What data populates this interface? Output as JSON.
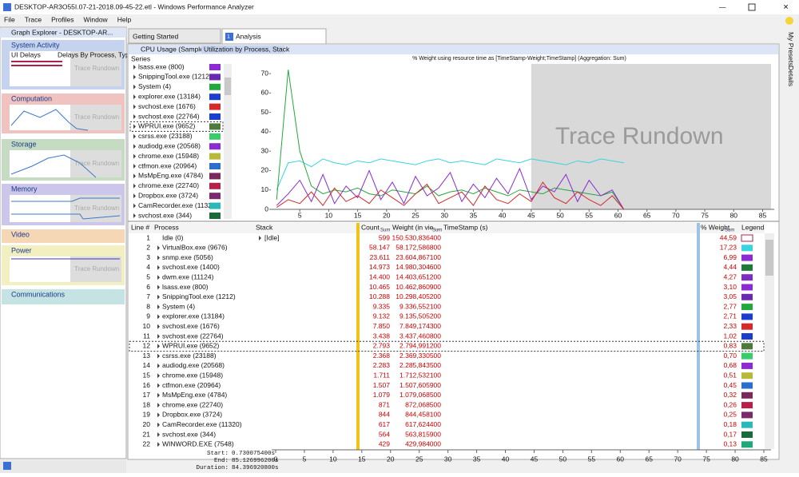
{
  "window": {
    "title": "DESKTOP-AR3O55I.07-21-2018.09-45-22.etl - Windows Performance Analyzer"
  },
  "menu": [
    "File",
    "Trace",
    "Profiles",
    "Window",
    "Help"
  ],
  "graph_explorer": {
    "title": "Graph Explorer - DESKTOP-AR...",
    "sections": [
      {
        "name": "System Activity",
        "subs": [
          "UI Delays",
          "Delays By Process, Type"
        ]
      },
      {
        "name": "Computation"
      },
      {
        "name": "Storage"
      },
      {
        "name": "Memory"
      },
      {
        "name": "Video"
      },
      {
        "name": "Power"
      },
      {
        "name": "Communications"
      }
    ],
    "watermark": "Trace Rundown"
  },
  "tabs": [
    "Getting Started",
    "Analysis"
  ],
  "tab_number": "1",
  "analysis": {
    "graph": "CPU Usage (Sampled)",
    "preset": "Utilization by Process, Stack",
    "series_header": "Series"
  },
  "chart_data": {
    "type": "line",
    "title": "% Weight using resource time as [TimeStamp-Weight;TimeStamp] (Aggregation: Sum)",
    "watermark": "Trace Rundown",
    "xlim": [
      0,
      87
    ],
    "ylim": [
      0,
      75
    ],
    "xticks": [
      5,
      10,
      15,
      20,
      25,
      30,
      35,
      40,
      45,
      50,
      55,
      60,
      65,
      70,
      75,
      80,
      85
    ],
    "yticks": [
      0,
      10,
      20,
      30,
      40,
      50,
      60,
      70
    ],
    "x": [
      1,
      3,
      5,
      7,
      9,
      11,
      13,
      15,
      17,
      19,
      21,
      23,
      25,
      27,
      29,
      31,
      33,
      35,
      37,
      39,
      41,
      43,
      45,
      47,
      49,
      51,
      53,
      55,
      57,
      59,
      61
    ],
    "series": [
      {
        "name": "VirtualBox.exe (9676)",
        "color": "#3ad4e0",
        "values": [
          10,
          24,
          25,
          22,
          26,
          24,
          23,
          25,
          24,
          26,
          25,
          24,
          23,
          25,
          26,
          24,
          25,
          24,
          23,
          26,
          25,
          24,
          26,
          25,
          24,
          23,
          25,
          24,
          26,
          25,
          24
        ]
      },
      {
        "name": "System (4)",
        "color": "#22a83c",
        "values": [
          5,
          72,
          30,
          12,
          8,
          10,
          9,
          11,
          8,
          7,
          10,
          9,
          8,
          12,
          7,
          9,
          10,
          8,
          11,
          9,
          7,
          10,
          9,
          8,
          11,
          10,
          9,
          8,
          7,
          9,
          0
        ]
      },
      {
        "name": "snmp.exe (5056)",
        "color": "#8b2bd1",
        "values": [
          2,
          8,
          15,
          4,
          18,
          3,
          12,
          6,
          20,
          5,
          14,
          3,
          17,
          7,
          11,
          19,
          4,
          13,
          6,
          16,
          8,
          21,
          5,
          12,
          9,
          18,
          4,
          15,
          7,
          10,
          0
        ]
      },
      {
        "name": "svchost.exe (1676)",
        "color": "#d42a2a",
        "values": [
          1,
          5,
          3,
          9,
          2,
          11,
          4,
          7,
          3,
          10,
          6,
          2,
          8,
          13,
          3,
          6,
          9,
          2,
          12,
          5,
          3,
          8,
          4,
          14,
          6,
          3,
          9,
          5,
          2,
          7,
          0
        ]
      }
    ]
  },
  "table": {
    "columns": [
      "Line #",
      "Process",
      "Stack",
      "Count",
      "Weight (in vie...",
      "TimeStamp (s)",
      "% Weight",
      "Legend"
    ],
    "agg": "Sum",
    "rows": [
      {
        "line": 1,
        "process": "Idle (0)",
        "stack": "[Idle]",
        "count": "599",
        "weight": "150.530,836400",
        "pct": "44,59",
        "color": "#ffffff"
      },
      {
        "line": 2,
        "process": "VirtualBox.exe (9676)",
        "count": "58.147",
        "weight": "58.172,586800",
        "pct": "17,23",
        "color": "#3ad4e0"
      },
      {
        "line": 3,
        "process": "snmp.exe (5056)",
        "count": "23.611",
        "weight": "23.604,867100",
        "pct": "6,99",
        "color": "#8b2bd1"
      },
      {
        "line": 4,
        "process": "svchost.exe (1400)",
        "count": "14.973",
        "weight": "14.980,304600",
        "pct": "4,44",
        "color": "#1f7a3a"
      },
      {
        "line": 5,
        "process": "dwm.exe (11124)",
        "count": "14.400",
        "weight": "14.403,651200",
        "pct": "4,27",
        "color": "#7b2fbe"
      },
      {
        "line": 6,
        "process": "lsass.exe (800)",
        "count": "10.465",
        "weight": "10.462,860900",
        "pct": "3,10",
        "color": "#8b2bd1"
      },
      {
        "line": 7,
        "process": "SnippingTool.exe (1212)",
        "count": "10.288",
        "weight": "10.298,405200",
        "pct": "3,05",
        "color": "#6a2ab0"
      },
      {
        "line": 8,
        "process": "System (4)",
        "count": "9.335",
        "weight": "9.336,552100",
        "pct": "2,77",
        "color": "#22a83c"
      },
      {
        "line": 9,
        "process": "explorer.exe (13184)",
        "count": "9.132",
        "weight": "9.135,505200",
        "pct": "2,71",
        "color": "#1a3fcc"
      },
      {
        "line": 10,
        "process": "svchost.exe (1676)",
        "count": "7.850",
        "weight": "7.849,174300",
        "pct": "2,33",
        "color": "#d42a2a"
      },
      {
        "line": 11,
        "process": "svchost.exe (22764)",
        "count": "3.438",
        "weight": "3.437,460800",
        "pct": "1,02",
        "color": "#1a3fcc"
      },
      {
        "line": 12,
        "process": "WPRUI.exe (9652)",
        "count": "2.793",
        "weight": "2.794,991200",
        "pct": "0,83",
        "color": "#4c7a3a"
      },
      {
        "line": 13,
        "process": "csrss.exe (23188)",
        "count": "2.368",
        "weight": "2.369,330500",
        "pct": "0,70",
        "color": "#3acb6a"
      },
      {
        "line": 14,
        "process": "audiodg.exe (20568)",
        "count": "2.283",
        "weight": "2.285,843500",
        "pct": "0,68",
        "color": "#8b2bd1"
      },
      {
        "line": 15,
        "process": "chrome.exe (15948)",
        "count": "1.711",
        "weight": "1.712,532100",
        "pct": "0,51",
        "color": "#b8b83a"
      },
      {
        "line": 16,
        "process": "ctfmon.exe (20964)",
        "count": "1.507",
        "weight": "1.507,605900",
        "pct": "0,45",
        "color": "#2a6fcc"
      },
      {
        "line": 17,
        "process": "MsMpEng.exe (4784)",
        "count": "1.079",
        "weight": "1.079,068500",
        "pct": "0,32",
        "color": "#7a2a5a"
      },
      {
        "line": 18,
        "process": "chrome.exe (22740)",
        "count": "871",
        "weight": "872,068500",
        "pct": "0,26",
        "color": "#b81e4a"
      },
      {
        "line": 19,
        "process": "Dropbox.exe (3724)",
        "count": "844",
        "weight": "844,458100",
        "pct": "0,25",
        "color": "#7a2a6a"
      },
      {
        "line": 20,
        "process": "CamRecorder.exe (11320)",
        "count": "617",
        "weight": "617,624400",
        "pct": "0,18",
        "color": "#2ab8b8"
      },
      {
        "line": 21,
        "process": "svchost.exe (344)",
        "count": "564",
        "weight": "563,815900",
        "pct": "0,17",
        "color": "#1a6a3a"
      },
      {
        "line": 22,
        "process": "WINWORD.EXE (7548)",
        "count": "429",
        "weight": "429,984000",
        "pct": "0,13",
        "color": "#1fa87a"
      }
    ]
  },
  "footer": {
    "labels": [
      "Start:",
      "End:",
      "Duration:"
    ],
    "values": [
      "0.730075400s",
      "85.126996200s",
      "84.396920800s"
    ],
    "ruler_ticks": [
      0,
      5,
      10,
      15,
      20,
      25,
      30,
      35,
      40,
      45,
      50,
      55,
      60,
      65,
      70,
      75,
      80,
      85
    ]
  },
  "sidebar": [
    "My Presets",
    "Details"
  ]
}
